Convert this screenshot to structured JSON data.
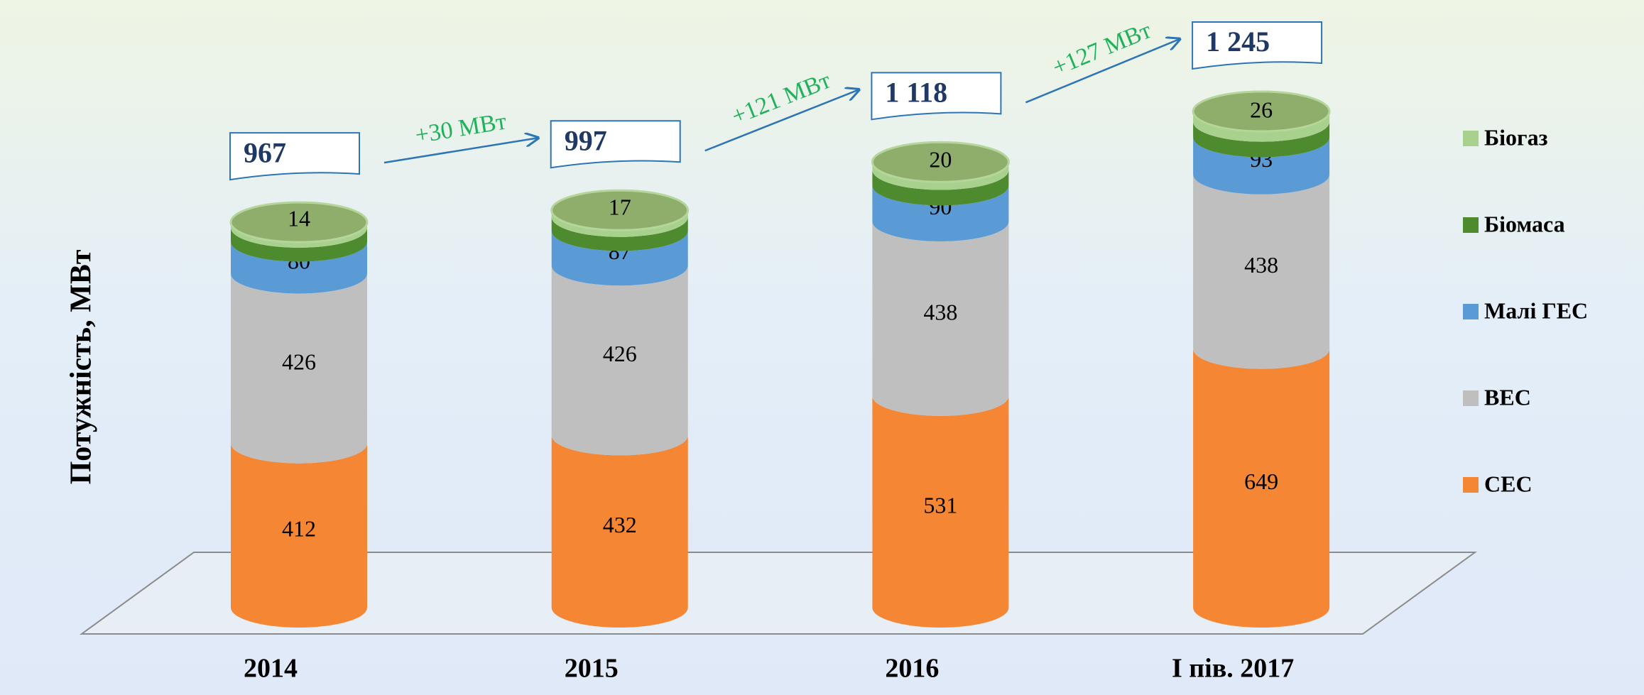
{
  "chart_data": {
    "type": "cylinder-stack",
    "y_label": "Потужність, МВт",
    "categories": [
      "2014",
      "2015",
      "2016",
      "І пів. 2017"
    ],
    "series": [
      {
        "name": "СЕС",
        "color": "#f58634",
        "values": [
          412,
          432,
          531,
          649
        ]
      },
      {
        "name": "ВЕС",
        "color": "#bfbfbf",
        "values": [
          426,
          426,
          438,
          438
        ]
      },
      {
        "name": "Малі ГЕС",
        "color": "#5b9bd5",
        "values": [
          80,
          87,
          90,
          93
        ]
      },
      {
        "name": "Біомаса",
        "color": "#4e8a2e",
        "values": [
          35,
          35,
          39,
          39
        ]
      },
      {
        "name": "Біогаз",
        "color": "#a9d18e",
        "values": [
          14,
          17,
          20,
          26
        ]
      }
    ],
    "totals": {
      "values": [
        967,
        997,
        1118,
        1245
      ],
      "value_labels": [
        "967",
        "997",
        "1 118",
        "1 245"
      ]
    },
    "annotations": [
      "+30 МВт",
      "+121 МВт",
      "+127 МВт"
    ],
    "ylim": [
      0,
      1400
    ]
  }
}
